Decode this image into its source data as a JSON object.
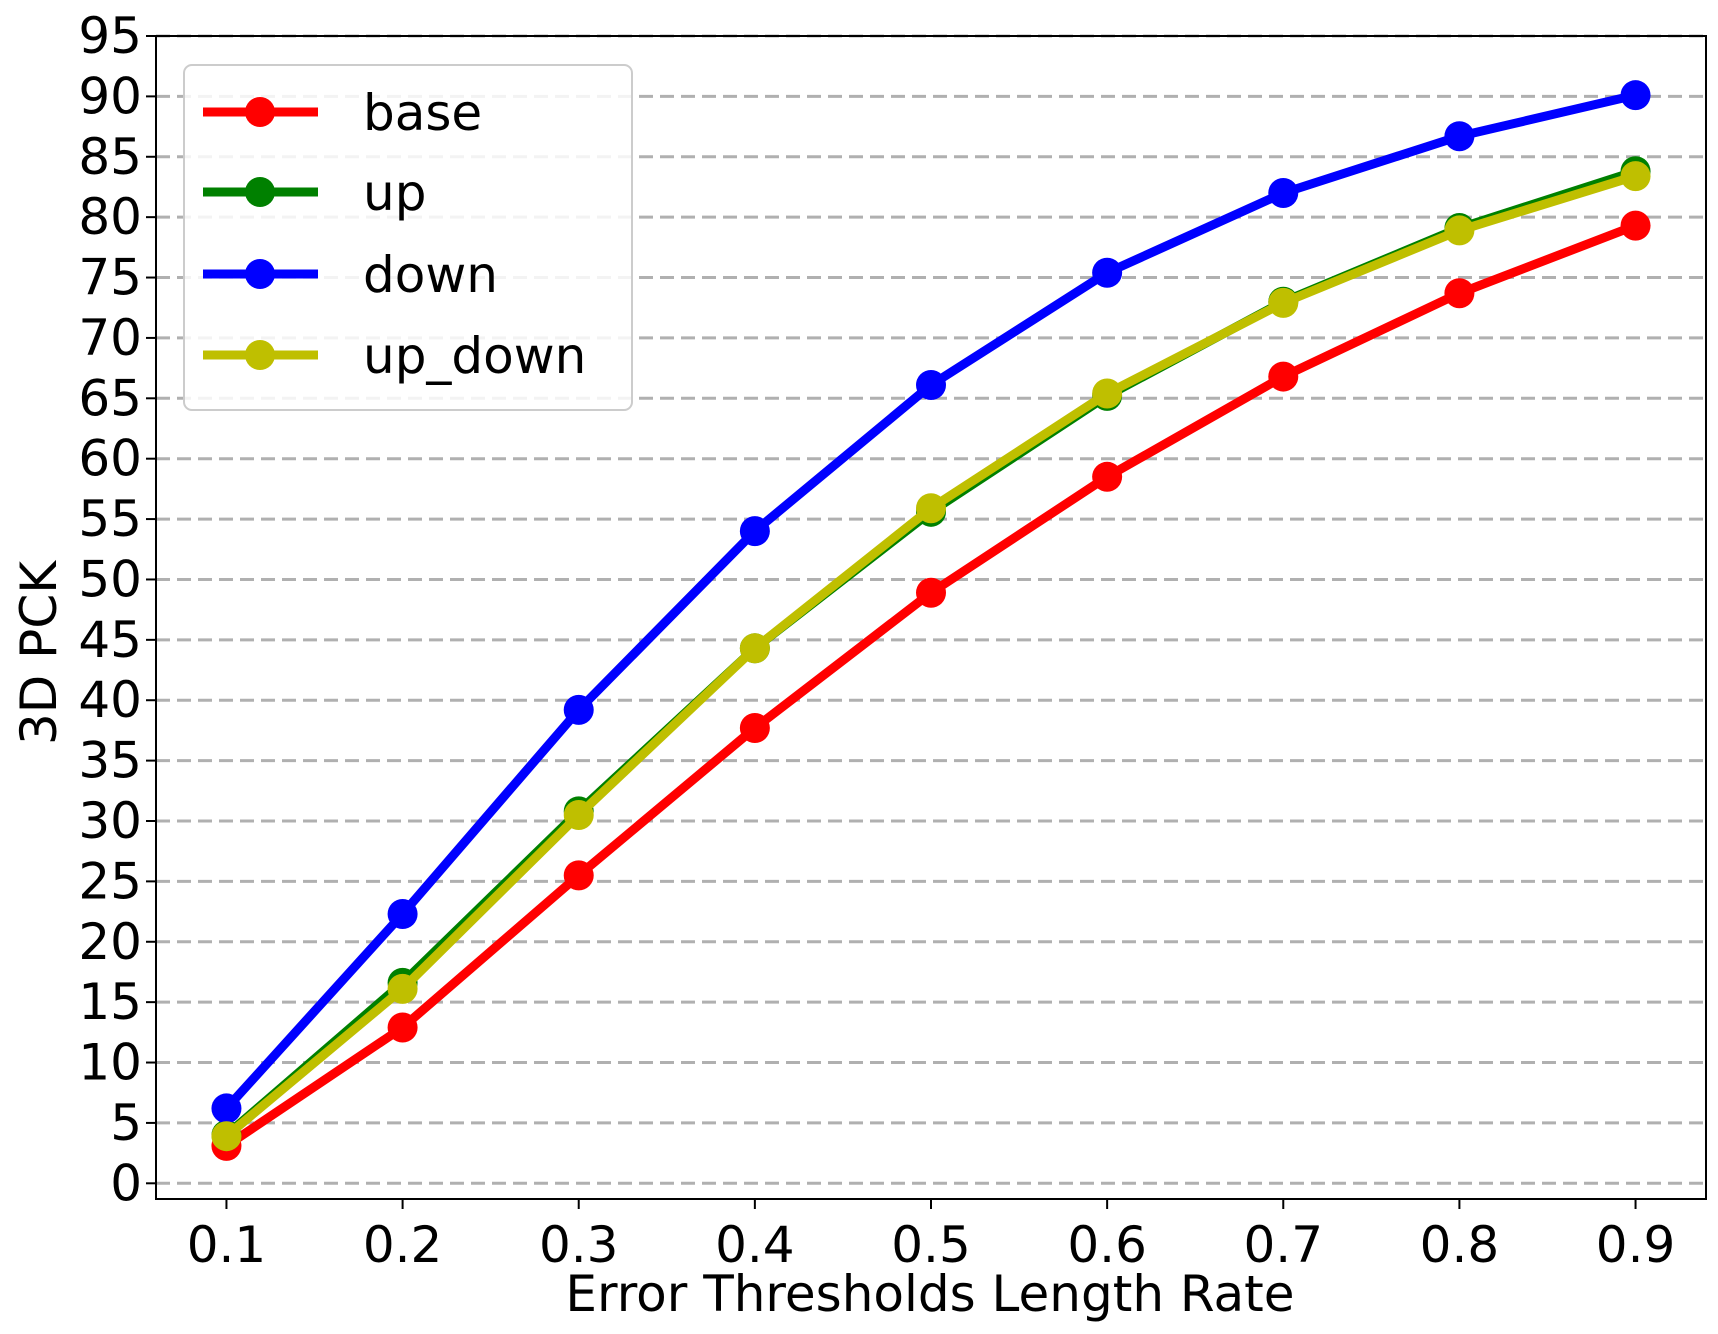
{
  "chart_data": {
    "type": "line",
    "title": "",
    "xlabel": "Error Thresholds Length Rate",
    "ylabel": "3D PCK",
    "x": [
      0.1,
      0.2,
      0.3,
      0.4,
      0.5,
      0.6,
      0.7,
      0.8,
      0.9
    ],
    "x_tick_labels": [
      "0.1",
      "0.2",
      "0.3",
      "0.4",
      "0.5",
      "0.6",
      "0.7",
      "0.8",
      "0.9"
    ],
    "y_ticks": [
      0,
      5,
      10,
      15,
      20,
      25,
      30,
      35,
      40,
      45,
      50,
      55,
      60,
      65,
      70,
      75,
      80,
      85,
      90,
      95
    ],
    "xlim": [
      0.06,
      0.94
    ],
    "ylim": [
      -1.3,
      95
    ],
    "grid": "horizontal dashed",
    "legend_position": "top-left",
    "series": [
      {
        "name": "base",
        "color": "#ff0000",
        "values": [
          3.1,
          12.9,
          25.5,
          37.7,
          48.9,
          58.5,
          66.8,
          73.7,
          79.3
        ]
      },
      {
        "name": "up",
        "color": "#008000",
        "values": [
          4.0,
          16.6,
          30.8,
          44.3,
          55.6,
          65.2,
          73.0,
          79.1,
          83.8
        ]
      },
      {
        "name": "down",
        "color": "#0000ff",
        "values": [
          6.2,
          22.3,
          39.2,
          54.0,
          66.1,
          75.4,
          82.0,
          86.7,
          90.1
        ]
      },
      {
        "name": "up_down",
        "color": "#bfbf00",
        "values": [
          3.9,
          16.1,
          30.5,
          44.3,
          55.9,
          65.4,
          72.9,
          78.9,
          83.4
        ]
      }
    ]
  }
}
